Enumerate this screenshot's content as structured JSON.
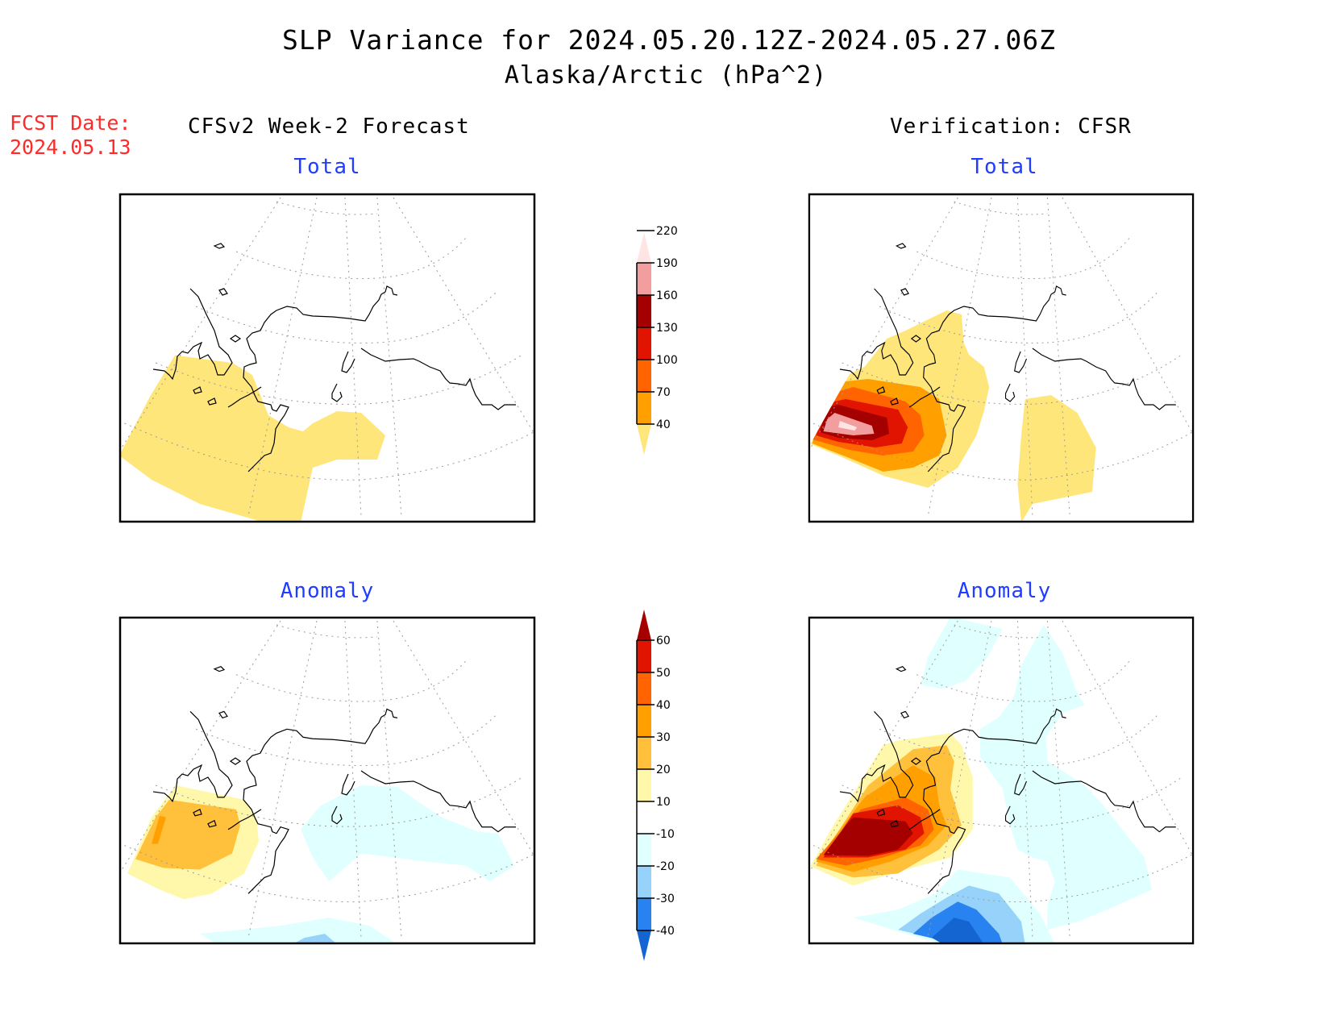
{
  "header": {
    "title": "SLP Variance for 2024.05.20.12Z-2024.05.27.06Z",
    "subtitle": "Alaska/Arctic (hPa^2)",
    "fcst_date_label": "FCST Date:",
    "fcst_date_value": "2024.05.13"
  },
  "columns": {
    "left": "CFSv2 Week-2 Forecast",
    "right": "Verification: CFSR"
  },
  "colors": {
    "title_text": "#000000",
    "fcst_text": "#ff2a2a",
    "panel_title_text": "#1f3cff"
  },
  "chart_data": [
    {
      "type": "heatmap",
      "panel": "forecast-total",
      "title": "Total",
      "source": "CFSv2 Week-2 Forecast",
      "colorbar": "total",
      "features": [
        "40-70 band over Bering Sea / western Aleutians and south of Alaska Peninsula"
      ]
    },
    {
      "type": "heatmap",
      "panel": "verification-total",
      "title": "Total",
      "source": "Verification: CFSR",
      "colorbar": "total",
      "features": [
        "maximum >190 over western Bering Sea",
        "40-70 band over Gulf of Alaska"
      ]
    },
    {
      "type": "heatmap",
      "panel": "forecast-anomaly",
      "title": "Anomaly",
      "source": "CFSv2 Week-2 Forecast",
      "colorbar": "anomaly",
      "features": [
        "+20 to +30 over western Bering Sea",
        "-10 to -20 along southern Alaska coast and North Pacific"
      ]
    },
    {
      "type": "heatmap",
      "panel": "verification-anomaly",
      "title": "Anomaly",
      "source": "Verification: CFSR",
      "colorbar": "anomaly",
      "features": [
        ">60 over western Bering Sea",
        "<-40 over North Pacific south of Aleutians",
        "-10 to -20 over Arctic and interior Alaska"
      ]
    }
  ],
  "colorbars": {
    "total": {
      "levels": [
        "40",
        "70",
        "100",
        "130",
        "160",
        "190",
        "220"
      ],
      "colors": [
        "#ffe67a",
        "#ffa000",
        "#ff6400",
        "#e01400",
        "#a50000",
        "#f29e9e",
        "#ffe4e4"
      ],
      "extend": "both"
    },
    "anomaly": {
      "levels": [
        "-40",
        "-30",
        "-20",
        "-10",
        "10",
        "20",
        "30",
        "40",
        "50",
        "60"
      ],
      "colors": [
        "#1464d2",
        "#2882f0",
        "#96d2fa",
        "#e0ffff",
        "#ffffff",
        "#fff8aa",
        "#ffc03c",
        "#ffa000",
        "#ff6400",
        "#e01400",
        "#a50000"
      ],
      "extend": "both"
    }
  }
}
